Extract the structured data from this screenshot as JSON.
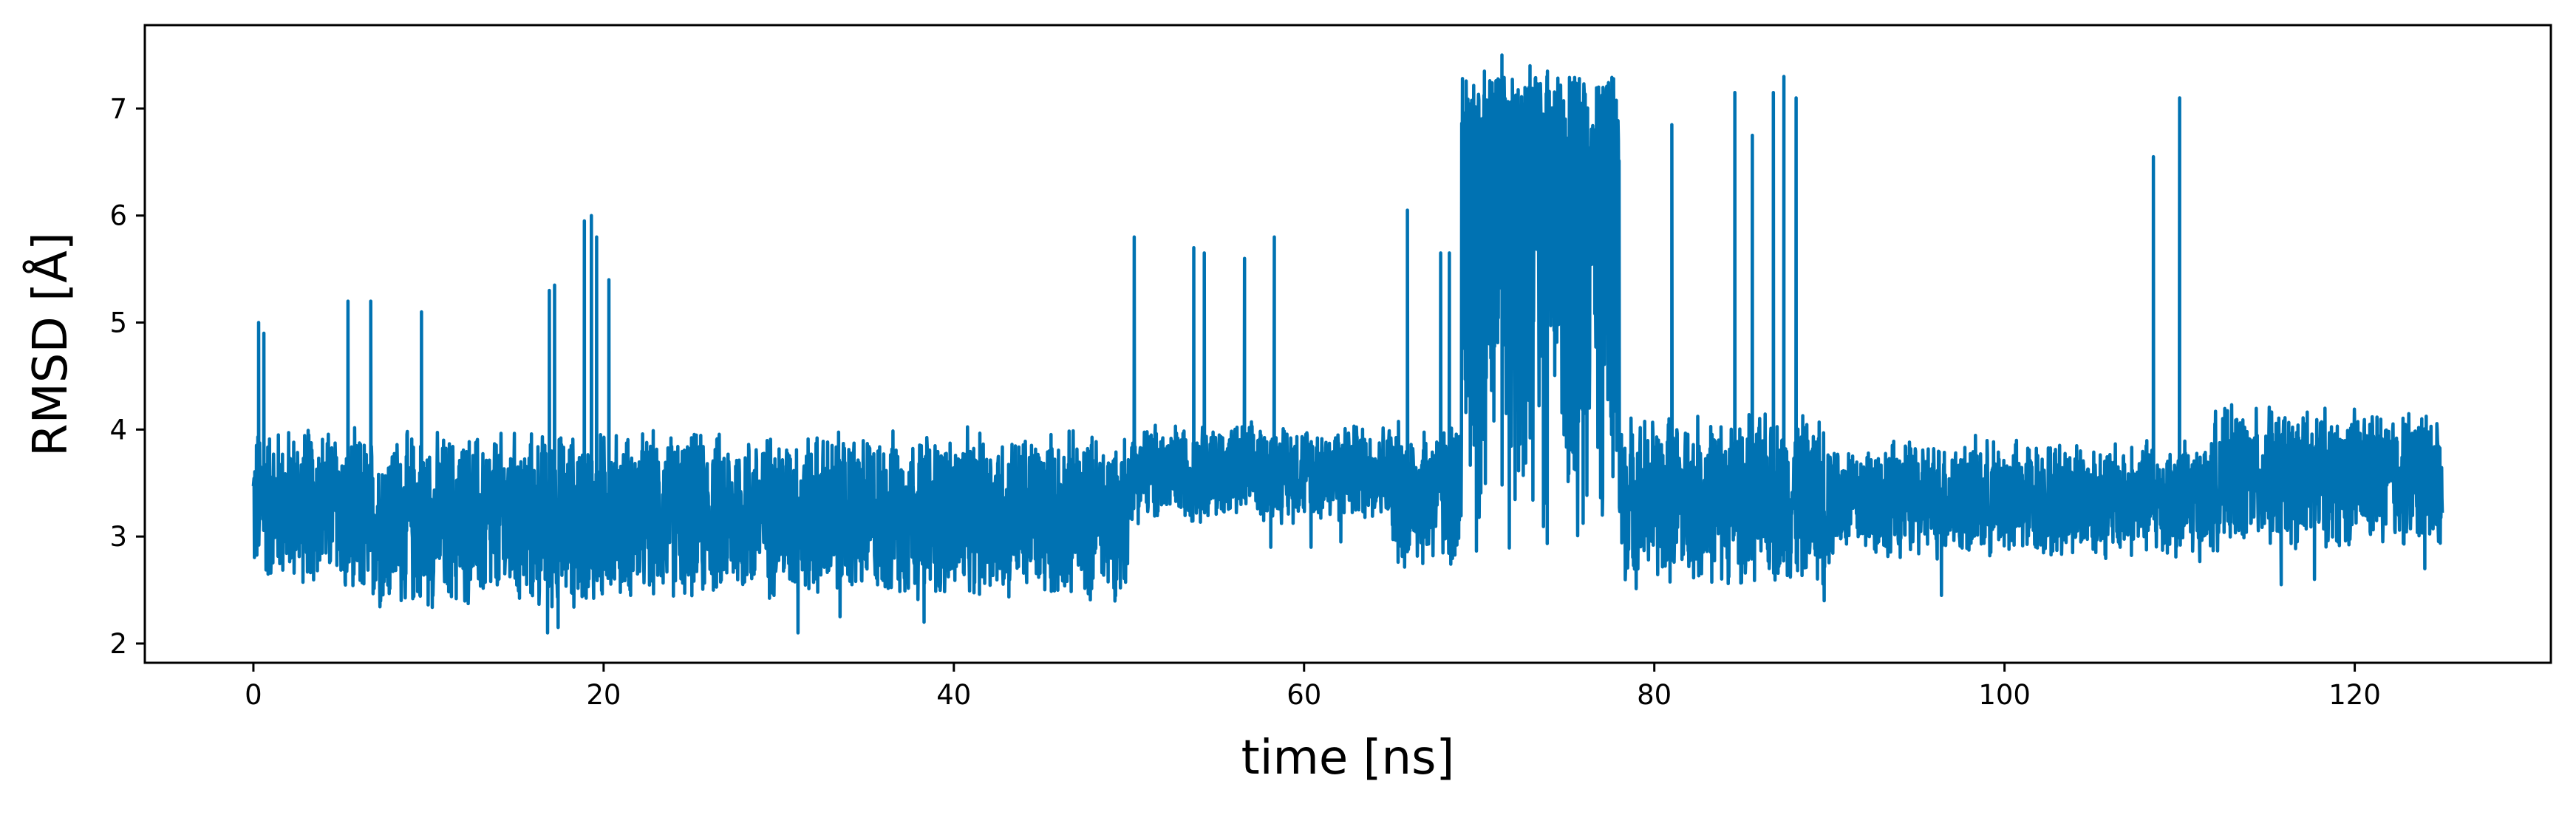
{
  "chart_data": {
    "type": "line",
    "title": "",
    "xlabel": "time [ns]",
    "ylabel": "RMSD [Å]",
    "xlim": [
      -6.2,
      131.2
    ],
    "ylim": [
      1.82,
      7.78
    ],
    "xticks": [
      0,
      20,
      40,
      60,
      80,
      100,
      120
    ],
    "yticks": [
      2,
      3,
      4,
      5,
      6,
      7
    ],
    "grid": false,
    "legend": "none",
    "series": [
      {
        "color": "#0072b2",
        "x_range": [
          0,
          125
        ],
        "segments": [
          {
            "x": [
              0,
              5
            ],
            "base": 3.3,
            "amp": 0.8
          },
          {
            "x": [
              5,
              20
            ],
            "base": 3.15,
            "amp": 0.9
          },
          {
            "x": [
              20,
              50
            ],
            "base": 3.2,
            "amp": 0.85
          },
          {
            "x": [
              50,
              65
            ],
            "base": 3.6,
            "amp": 0.5
          },
          {
            "x": [
              65,
              69
            ],
            "base": 3.4,
            "amp": 0.75
          },
          {
            "x": [
              69,
              78
            ],
            "base": 5.0,
            "amp": 2.3
          },
          {
            "x": [
              78,
              90
            ],
            "base": 3.35,
            "amp": 0.85
          },
          {
            "x": [
              90,
              112
            ],
            "base": 3.35,
            "amp": 0.6
          },
          {
            "x": [
              112,
              125
            ],
            "base": 3.55,
            "amp": 0.7
          }
        ],
        "spikes": [
          {
            "x": 0.3,
            "y": 5.0
          },
          {
            "x": 0.6,
            "y": 4.9
          },
          {
            "x": 5.4,
            "y": 5.2
          },
          {
            "x": 6.7,
            "y": 5.2
          },
          {
            "x": 9.6,
            "y": 5.1
          },
          {
            "x": 16.9,
            "y": 5.3
          },
          {
            "x": 17.2,
            "y": 5.35
          },
          {
            "x": 18.9,
            "y": 5.95
          },
          {
            "x": 19.3,
            "y": 6.0
          },
          {
            "x": 19.6,
            "y": 5.8
          },
          {
            "x": 20.3,
            "y": 5.4
          },
          {
            "x": 50.3,
            "y": 5.8
          },
          {
            "x": 53.7,
            "y": 5.7
          },
          {
            "x": 54.3,
            "y": 5.65
          },
          {
            "x": 56.6,
            "y": 5.6
          },
          {
            "x": 58.3,
            "y": 5.8
          },
          {
            "x": 65.9,
            "y": 6.05
          },
          {
            "x": 67.8,
            "y": 5.65
          },
          {
            "x": 68.3,
            "y": 5.65
          },
          {
            "x": 70.3,
            "y": 7.35
          },
          {
            "x": 71.3,
            "y": 7.5
          },
          {
            "x": 72.9,
            "y": 7.4
          },
          {
            "x": 73.9,
            "y": 7.35
          },
          {
            "x": 75.8,
            "y": 6.75
          },
          {
            "x": 76.6,
            "y": 6.8
          },
          {
            "x": 77.3,
            "y": 6.75
          },
          {
            "x": 81.0,
            "y": 6.85
          },
          {
            "x": 84.6,
            "y": 7.15
          },
          {
            "x": 85.6,
            "y": 6.75
          },
          {
            "x": 86.8,
            "y": 7.15
          },
          {
            "x": 87.4,
            "y": 7.3
          },
          {
            "x": 88.1,
            "y": 7.1
          },
          {
            "x": 108.5,
            "y": 6.55
          },
          {
            "x": 110.0,
            "y": 7.1
          }
        ],
        "dips": [
          {
            "x": 16.8,
            "y": 2.1
          },
          {
            "x": 17.4,
            "y": 2.15
          },
          {
            "x": 31.1,
            "y": 2.1
          },
          {
            "x": 33.5,
            "y": 2.25
          },
          {
            "x": 38.3,
            "y": 2.2
          },
          {
            "x": 56.4,
            "y": 3.3
          },
          {
            "x": 58.1,
            "y": 2.9
          },
          {
            "x": 60.4,
            "y": 2.9
          },
          {
            "x": 62.1,
            "y": 2.95
          },
          {
            "x": 89.7,
            "y": 2.4
          },
          {
            "x": 96.4,
            "y": 2.45
          },
          {
            "x": 115.8,
            "y": 2.55
          },
          {
            "x": 117.7,
            "y": 2.6
          },
          {
            "x": 124.0,
            "y": 2.7
          }
        ]
      }
    ]
  }
}
